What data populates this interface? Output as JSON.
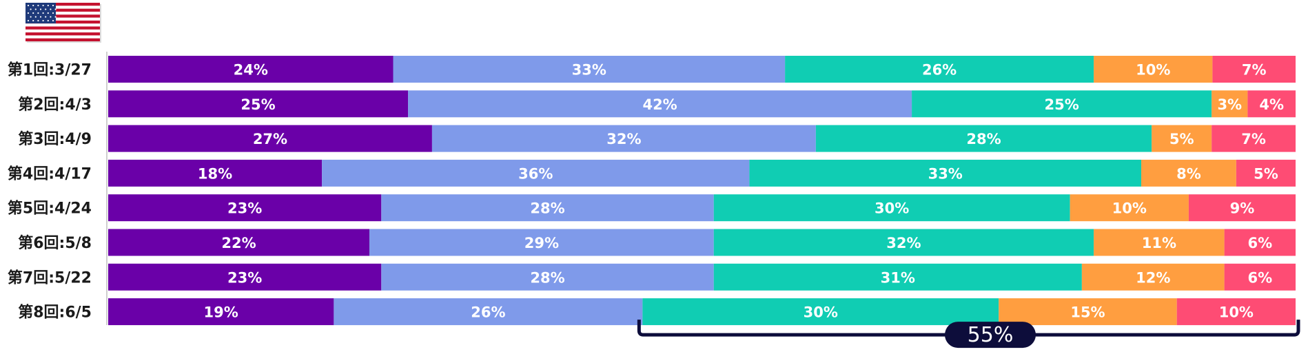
{
  "country_flag": "us-flag-icon",
  "chart_data": {
    "type": "bar",
    "orientation": "horizontal",
    "stacked": true,
    "percent": true,
    "categories": [
      "第1回:3/27",
      "第2回:4/3",
      "第3回:4/9",
      "第4回:4/17",
      "第5回:4/24",
      "第6回:5/8",
      "第7回:5/22",
      "第8回:6/5"
    ],
    "series": [
      {
        "values": [
          24,
          25,
          27,
          18,
          23,
          22,
          23,
          19
        ],
        "color": "#6a00a8"
      },
      {
        "values": [
          33,
          42,
          32,
          36,
          28,
          29,
          28,
          26
        ],
        "color": "#7f9aea"
      },
      {
        "values": [
          26,
          25,
          28,
          33,
          30,
          32,
          31,
          30
        ],
        "color": "#10cdb3"
      },
      {
        "values": [
          10,
          3,
          5,
          8,
          10,
          11,
          12,
          15
        ],
        "color": "#ff9e40"
      },
      {
        "values": [
          7,
          4,
          7,
          5,
          9,
          6,
          6,
          10
        ],
        "color": "#fe4c74"
      }
    ],
    "value_labels": [
      [
        "24%",
        "33%",
        "26%",
        "10%",
        "7%"
      ],
      [
        "25%",
        "42%",
        "25%",
        "3%",
        "4%"
      ],
      [
        "27%",
        "32%",
        "28%",
        "5%",
        "7%"
      ],
      [
        "18%",
        "36%",
        "33%",
        "8%",
        "5%"
      ],
      [
        "23%",
        "28%",
        "30%",
        "10%",
        "9%"
      ],
      [
        "22%",
        "29%",
        "32%",
        "11%",
        "6%"
      ],
      [
        "23%",
        "28%",
        "31%",
        "12%",
        "6%"
      ],
      [
        "19%",
        "26%",
        "30%",
        "15%",
        "10%"
      ]
    ],
    "annotation": {
      "text": "55%",
      "row": 7,
      "from_series": 2,
      "to_series": 4,
      "color": "#0d0d3b"
    }
  }
}
